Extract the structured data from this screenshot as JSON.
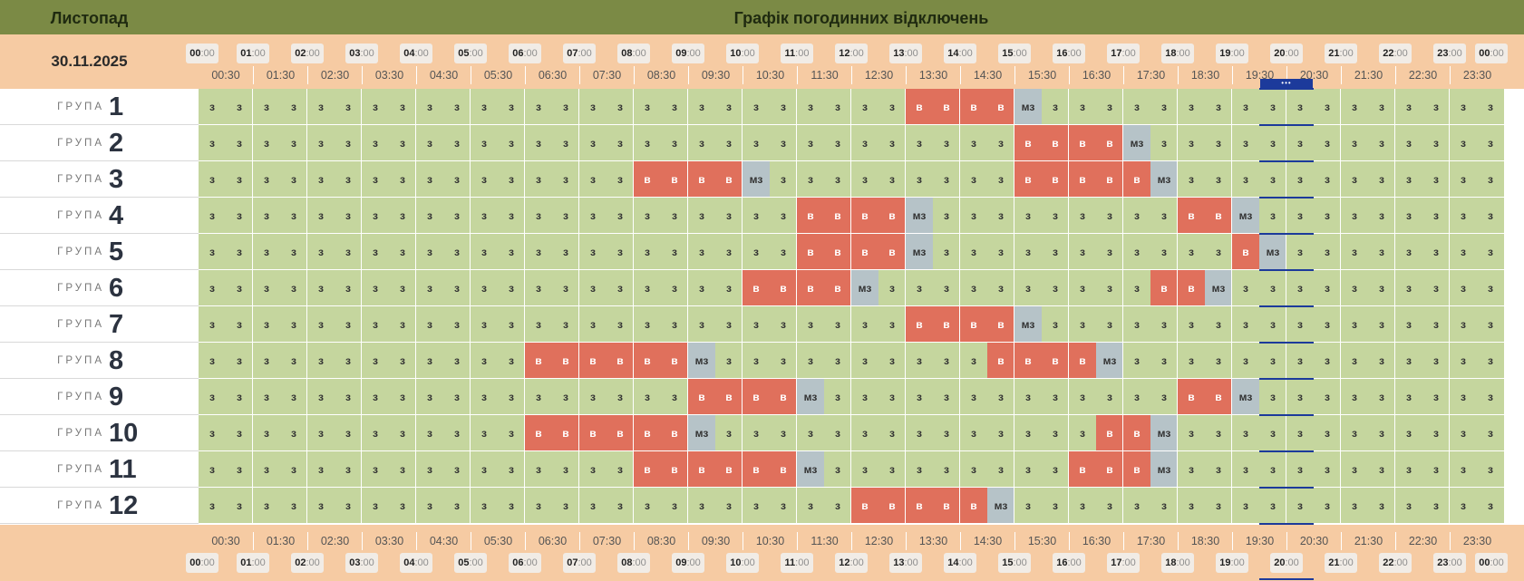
{
  "header": {
    "month": "Листопад",
    "title": "Графік погодинних відключень"
  },
  "date": "30.11.2025",
  "group_word": "ГРУПА",
  "current_marker": "•••",
  "hour_labels": [
    {
      "h": "00",
      "m": ":00"
    },
    {
      "h": "01",
      "m": ":00"
    },
    {
      "h": "02",
      "m": ":00"
    },
    {
      "h": "03",
      "m": ":00"
    },
    {
      "h": "04",
      "m": ":00"
    },
    {
      "h": "05",
      "m": ":00"
    },
    {
      "h": "06",
      "m": ":00"
    },
    {
      "h": "07",
      "m": ":00"
    },
    {
      "h": "08",
      "m": ":00"
    },
    {
      "h": "09",
      "m": ":00"
    },
    {
      "h": "10",
      "m": ":00"
    },
    {
      "h": "11",
      "m": ":00"
    },
    {
      "h": "12",
      "m": ":00"
    },
    {
      "h": "13",
      "m": ":00"
    },
    {
      "h": "14",
      "m": ":00"
    },
    {
      "h": "15",
      "m": ":00"
    },
    {
      "h": "16",
      "m": ":00"
    },
    {
      "h": "17",
      "m": ":00"
    },
    {
      "h": "18",
      "m": ":00"
    },
    {
      "h": "19",
      "m": ":00"
    },
    {
      "h": "20",
      "m": ":00"
    },
    {
      "h": "21",
      "m": ":00"
    },
    {
      "h": "22",
      "m": ":00"
    },
    {
      "h": "23",
      "m": ":00"
    },
    {
      "h": "00",
      "m": ":00"
    }
  ],
  "half_labels": [
    "00:30",
    "01:30",
    "02:30",
    "03:30",
    "04:30",
    "05:30",
    "06:30",
    "07:30",
    "08:30",
    "09:30",
    "10:30",
    "11:30",
    "12:30",
    "13:30",
    "14:30",
    "15:30",
    "16:30",
    "17:30",
    "18:30",
    "19:30",
    "20:30",
    "21:30",
    "22:30",
    "23:30"
  ],
  "status_text": {
    "on": "з",
    "off": "в",
    "maybe": "мз"
  },
  "colors": {
    "on": "#c5d69e",
    "off": "#e0705c",
    "maybe": "#b6c3c8",
    "header": "#7b8a45",
    "band": "#f6cba3",
    "current": "#1c3a9b"
  },
  "current_slot": {
    "start": 39,
    "end": 40
  },
  "groups": [
    {
      "label": "1",
      "off": [
        26,
        29
      ],
      "maybe": [
        30
      ]
    },
    {
      "label": "2",
      "off": [
        30,
        33
      ],
      "maybe": [
        34
      ]
    },
    {
      "label": "3",
      "off": [
        16,
        19,
        30,
        34
      ],
      "maybe": [
        20,
        35
      ]
    },
    {
      "label": "4",
      "off": [
        22,
        25,
        36,
        37
      ],
      "maybe": [
        26,
        38
      ]
    },
    {
      "label": "5",
      "off": [
        22,
        25,
        38,
        38
      ],
      "maybe": [
        26,
        39
      ]
    },
    {
      "label": "6",
      "off": [
        20,
        23,
        35,
        36
      ],
      "maybe": [
        24,
        37
      ]
    },
    {
      "label": "7",
      "off": [
        26,
        29
      ],
      "maybe": [
        30
      ]
    },
    {
      "label": "8",
      "off": [
        12,
        17,
        29,
        32
      ],
      "maybe": [
        18,
        33
      ]
    },
    {
      "label": "9",
      "off": [
        18,
        21,
        36,
        37
      ],
      "maybe": [
        22,
        38
      ]
    },
    {
      "label": "10",
      "off": [
        12,
        17,
        33,
        34
      ],
      "maybe": [
        18,
        35
      ]
    },
    {
      "label": "11",
      "off": [
        16,
        21,
        32,
        34
      ],
      "maybe": [
        22,
        35
      ]
    },
    {
      "label": "12",
      "off": [
        24,
        28
      ],
      "maybe": [
        29
      ]
    }
  ]
}
